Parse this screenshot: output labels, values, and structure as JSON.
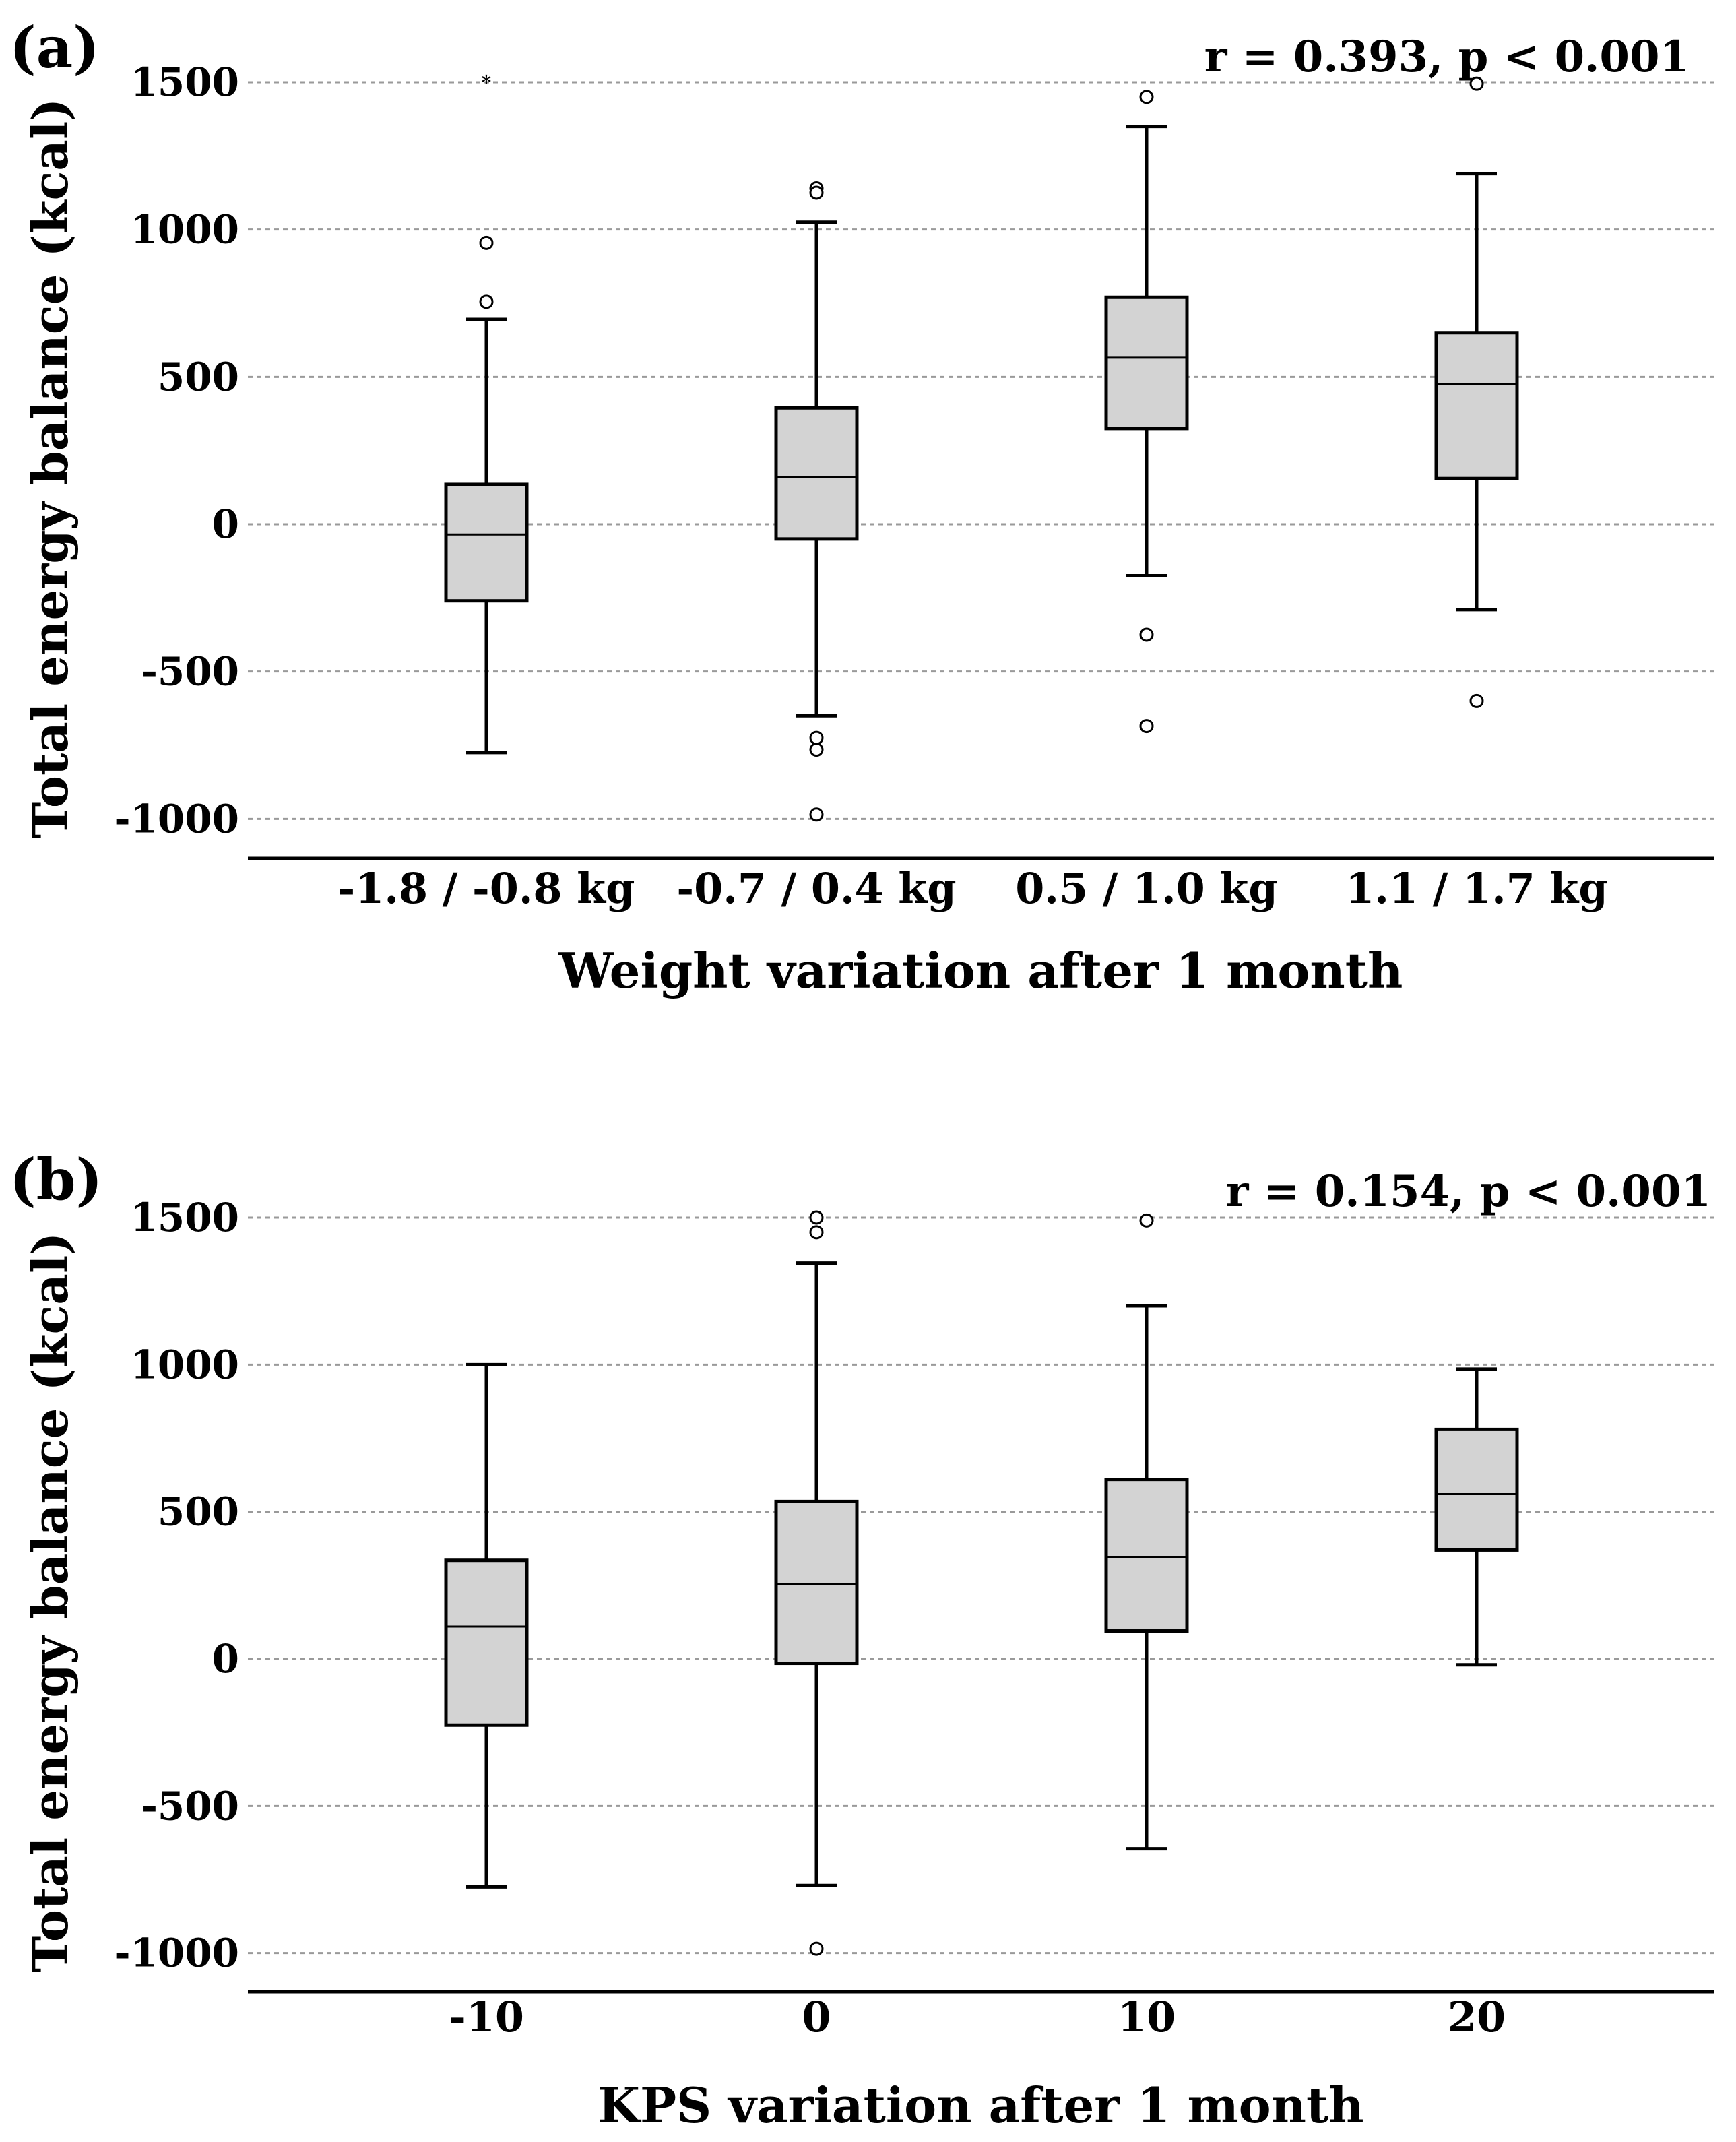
{
  "chart_data": [
    {
      "type": "boxplot",
      "panel_label": "(a)",
      "title": "",
      "annotation": "r = 0.393, p < 0.001",
      "xlabel": "Weight variation after 1 month",
      "ylabel": "Total energy balance (kcal)",
      "ylim": [
        -1150,
        1600
      ],
      "yticks": [
        1500,
        1000,
        500,
        0,
        -500,
        -1000
      ],
      "ytick_labels": [
        "1500",
        "1000",
        "500",
        "0",
        "-500",
        "-1000"
      ],
      "grid": true,
      "box_fill": "#d3d3d3",
      "categories": [
        "-1.8 / -0.8 kg",
        "-0.7 / 0.4 kg",
        "0.5 / 1.0 kg",
        "1.1 / 1.7 kg"
      ],
      "boxes": [
        {
          "whisker_low": -775,
          "q1": -260,
          "median": -35,
          "q3": 135,
          "whisker_high": 695,
          "outliers": [
            955,
            755
          ],
          "extremes": [
            1500
          ]
        },
        {
          "whisker_low": -650,
          "q1": -50,
          "median": 160,
          "q3": 395,
          "whisker_high": 1025,
          "outliers": [
            1140,
            1125,
            -725,
            -765,
            -985
          ],
          "extremes": []
        },
        {
          "whisker_low": -175,
          "q1": 325,
          "median": 565,
          "q3": 770,
          "whisker_high": 1350,
          "outliers": [
            1450,
            -375,
            -685
          ],
          "extremes": []
        },
        {
          "whisker_low": -290,
          "q1": 155,
          "median": 475,
          "q3": 650,
          "whisker_high": 1190,
          "outliers": [
            1495,
            -600
          ],
          "extremes": []
        }
      ]
    },
    {
      "type": "boxplot",
      "panel_label": "(b)",
      "title": "",
      "annotation": "r = 0.154, p < 0.001",
      "xlabel": "KPS variation after 1 month",
      "ylabel": "Total energy balance (kcal)",
      "ylim": [
        -1150,
        1600
      ],
      "yticks": [
        1500,
        1000,
        500,
        0,
        -500,
        -1000
      ],
      "ytick_labels": [
        "1500",
        "1000",
        "500",
        "0",
        "-500",
        "-1000"
      ],
      "grid": true,
      "box_fill": "#d3d3d3",
      "categories": [
        "-10",
        "0",
        "10",
        "20"
      ],
      "boxes": [
        {
          "whisker_low": -775,
          "q1": -225,
          "median": 110,
          "q3": 335,
          "whisker_high": 1000,
          "outliers": [],
          "extremes": []
        },
        {
          "whisker_low": -770,
          "q1": -15,
          "median": 255,
          "q3": 535,
          "whisker_high": 1345,
          "outliers": [
            1500,
            1450,
            -985
          ],
          "extremes": []
        },
        {
          "whisker_low": -645,
          "q1": 95,
          "median": 345,
          "q3": 610,
          "whisker_high": 1200,
          "outliers": [
            1490
          ],
          "extremes": []
        },
        {
          "whisker_low": -20,
          "q1": 370,
          "median": 560,
          "q3": 780,
          "whisker_high": 985,
          "outliers": [],
          "extremes": []
        }
      ]
    }
  ]
}
